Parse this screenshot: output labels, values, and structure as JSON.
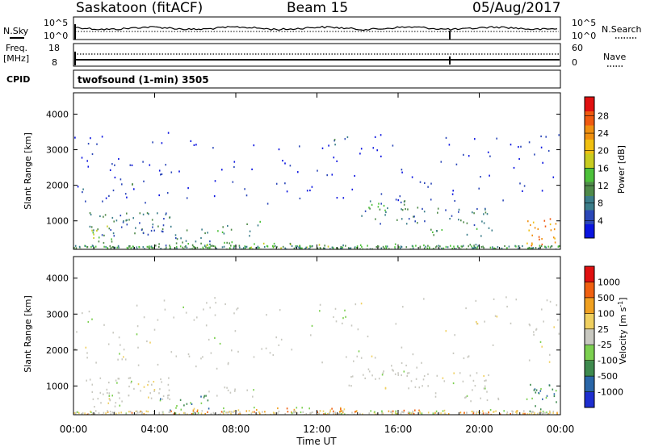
{
  "header": {
    "title": "Saskatoon (fitACF)",
    "beam": "Beam 15",
    "date": "05/Aug/2017"
  },
  "strips": {
    "nsky_label": "N.Sky",
    "nsearch_label": "N.Search",
    "noise_ticks": [
      "10^5",
      "10^0"
    ],
    "freq_label": "Freq.",
    "freq_unit": "[MHz]",
    "freq_ticks": [
      "18",
      "8"
    ],
    "nave_label": "Nave",
    "nave_ticks": [
      "60",
      "0"
    ],
    "cpid_label": "CPID",
    "cpid_value": "twofsound (1-min) 3505"
  },
  "chart_data": [
    {
      "type": "heatmap",
      "name": "power",
      "ylabel": "Slant Range [km]",
      "xlabel": "",
      "xlim": [
        "00:00",
        "24:00"
      ],
      "x_ticks": [
        "00:00",
        "04:00",
        "08:00",
        "12:00",
        "16:00",
        "20:00",
        "00:00"
      ],
      "ylim": [
        200,
        4600
      ],
      "y_ticks": [
        1000,
        2000,
        3000,
        4000
      ],
      "colorbar": {
        "label": "Power [dB]",
        "ticks": [
          "4",
          "8",
          "12",
          "16",
          "20",
          "24",
          "28"
        ],
        "colors": [
          "#0a14e0",
          "#2b47b8",
          "#3b7d8a",
          "#4f8a4a",
          "#4cc13a",
          "#c8cc20",
          "#f0c010",
          "#f09010",
          "#f05a10",
          "#e01010"
        ]
      }
    },
    {
      "type": "heatmap",
      "name": "velocity",
      "ylabel": "Slant Range [km]",
      "xlabel": "Time UT",
      "xlim": [
        "00:00",
        "24:00"
      ],
      "x_ticks": [
        "00:00",
        "04:00",
        "08:00",
        "12:00",
        "16:00",
        "20:00",
        "00:00"
      ],
      "ylim": [
        200,
        4600
      ],
      "y_ticks": [
        1000,
        2000,
        3000,
        4000
      ],
      "colorbar": {
        "label": "Velocity [m s",
        "label_sup": "-1",
        "ticks": [
          "1000",
          "500",
          "100",
          "25",
          "-25",
          "-100",
          "-500",
          "-1000"
        ],
        "colors": [
          "#1e2ed0",
          "#2a66a8",
          "#3e8a4e",
          "#7cd050",
          "#c8c8c0",
          "#f0d060",
          "#f0a020",
          "#f06010",
          "#e01010"
        ]
      }
    }
  ]
}
